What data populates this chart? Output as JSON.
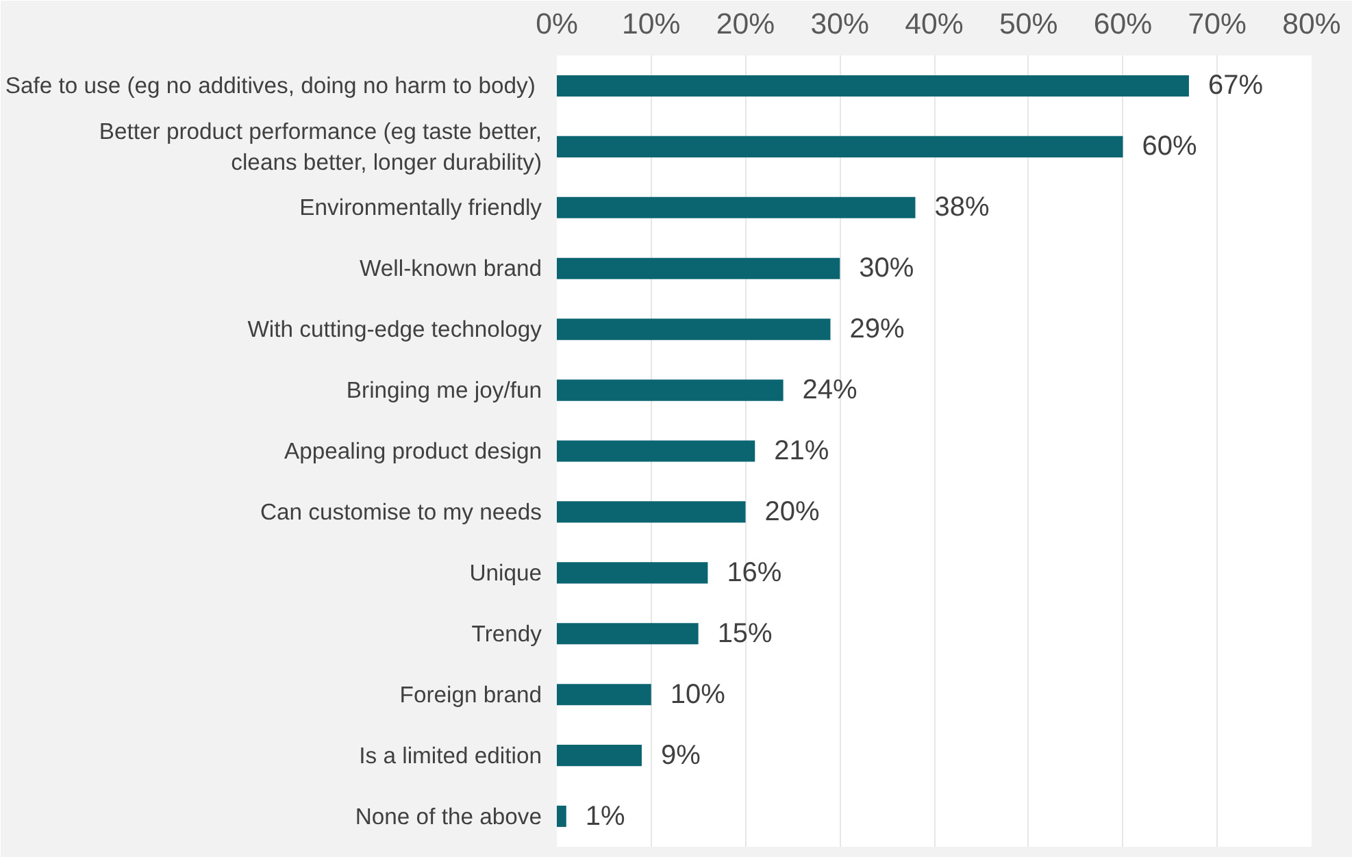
{
  "chart_data": {
    "type": "bar",
    "orientation": "horizontal",
    "color": "#0a6570",
    "categories": [
      "Safe  to use (eg no additives, doing no harm to body)",
      "Better product performance (eg taste better, cleans better, longer durability)",
      "Environmentally friendly",
      "Well-known brand",
      "With cutting-edge technology",
      "Bringing me joy/fun",
      "Appealing product design",
      "Can customise to my needs",
      "Unique",
      "Trendy",
      "Foreign brand",
      "Is a limited edition",
      "None of the above"
    ],
    "values": [
      67,
      60,
      38,
      30,
      29,
      24,
      21,
      20,
      16,
      15,
      10,
      9,
      1
    ],
    "value_labels": [
      "67%",
      "60%",
      "38%",
      "30%",
      "29%",
      "24%",
      "21%",
      "20%",
      "16%",
      "15%",
      "10%",
      "9%",
      "1%"
    ],
    "xlim": [
      0,
      80
    ],
    "xticks": [
      {
        "value": 0,
        "label": "0%"
      },
      {
        "value": 10,
        "label": "10%"
      },
      {
        "value": 20,
        "label": "20%"
      },
      {
        "value": 30,
        "label": "30%"
      },
      {
        "value": 40,
        "label": "40%"
      },
      {
        "value": 50,
        "label": "50%"
      },
      {
        "value": 60,
        "label": "60%"
      },
      {
        "value": 70,
        "label": "70%"
      },
      {
        "value": 80,
        "label": "80%"
      }
    ],
    "grid": "x"
  }
}
